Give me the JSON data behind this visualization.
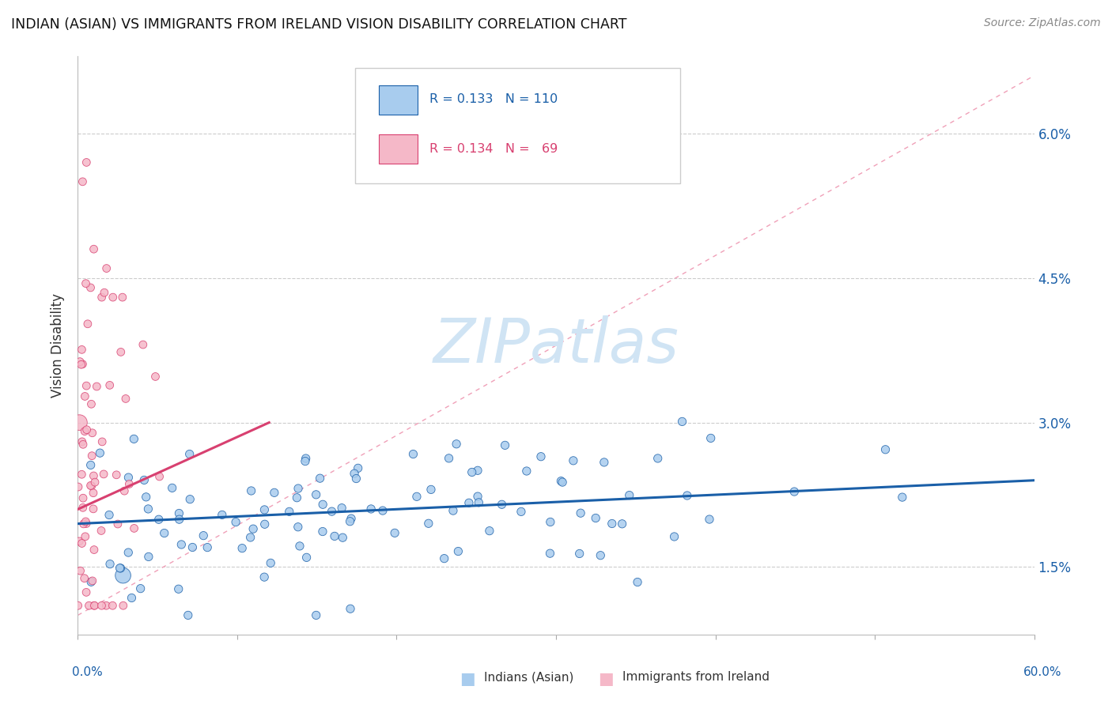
{
  "title": "INDIAN (ASIAN) VS IMMIGRANTS FROM IRELAND VISION DISABILITY CORRELATION CHART",
  "source": "Source: ZipAtlas.com",
  "ylabel": "Vision Disability",
  "xlim": [
    0.0,
    0.6
  ],
  "ylim": [
    0.008,
    0.068
  ],
  "ytick_vals": [
    0.015,
    0.03,
    0.045,
    0.06
  ],
  "ytick_labels": [
    "1.5%",
    "3.0%",
    "4.5%",
    "6.0%"
  ],
  "color_blue": "#A8CCEE",
  "color_pink": "#F5B8C8",
  "color_blue_line": "#1A5FA8",
  "color_pink_line": "#D84070",
  "color_ref_line": "#F0A0B8",
  "watermark_color": "#D0E4F4"
}
